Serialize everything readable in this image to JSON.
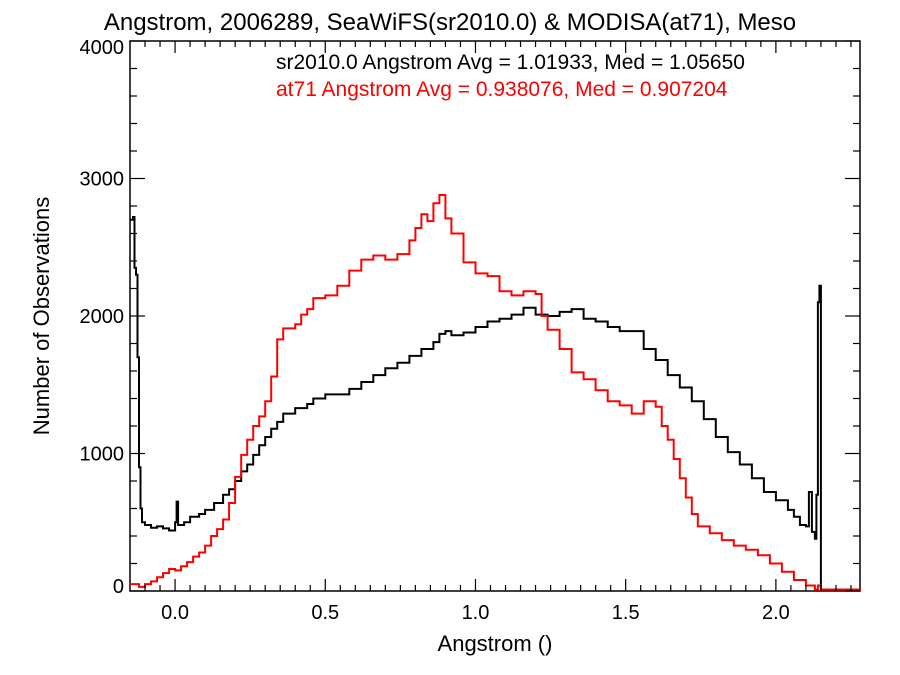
{
  "chart_data": {
    "type": "line",
    "title": "Angstrom, 2006289, SeaWiFS(sr2010.0) & MODISA(at71), Meso",
    "xlabel": "Angstrom ()",
    "ylabel": "Number of Observations",
    "xlim": [
      -0.15,
      2.28
    ],
    "ylim": [
      0,
      4000
    ],
    "x_ticks": [
      0.0,
      0.5,
      1.0,
      1.5,
      2.0
    ],
    "x_tick_labels": [
      "0.0",
      "0.5",
      "1.0",
      "1.5",
      "2.0"
    ],
    "y_ticks": [
      0,
      1000,
      2000,
      3000,
      4000
    ],
    "y_tick_labels": [
      "0",
      "1000",
      "2000",
      "3000",
      "4000"
    ],
    "grid": false,
    "annotations": [
      {
        "text": "sr2010.0 Angstrom Avg = 1.01933, Med = 1.05650",
        "color": "#000000"
      },
      {
        "text": "at71 Angstrom Avg = 0.938076, Med = 0.907204",
        "color": "#ff0000"
      }
    ],
    "series": [
      {
        "color": "#000000",
        "step": true,
        "points": [
          [
            -0.15,
            2700
          ],
          [
            -0.14,
            2720
          ],
          [
            -0.135,
            2350
          ],
          [
            -0.13,
            2300
          ],
          [
            -0.125,
            1700
          ],
          [
            -0.12,
            900
          ],
          [
            -0.115,
            600
          ],
          [
            -0.11,
            500
          ],
          [
            -0.1,
            480
          ],
          [
            -0.08,
            460
          ],
          [
            -0.06,
            470
          ],
          [
            -0.04,
            455
          ],
          [
            -0.02,
            440
          ],
          [
            0.0,
            500
          ],
          [
            0.005,
            650
          ],
          [
            0.01,
            480
          ],
          [
            0.03,
            500
          ],
          [
            0.05,
            540
          ],
          [
            0.08,
            560
          ],
          [
            0.1,
            590
          ],
          [
            0.13,
            640
          ],
          [
            0.16,
            700
          ],
          [
            0.18,
            740
          ],
          [
            0.2,
            800
          ],
          [
            0.22,
            870
          ],
          [
            0.24,
            920
          ],
          [
            0.26,
            990
          ],
          [
            0.28,
            1060
          ],
          [
            0.3,
            1120
          ],
          [
            0.32,
            1180
          ],
          [
            0.34,
            1230
          ],
          [
            0.36,
            1290
          ],
          [
            0.4,
            1330
          ],
          [
            0.44,
            1360
          ],
          [
            0.46,
            1400
          ],
          [
            0.5,
            1430
          ],
          [
            0.55,
            1430
          ],
          [
            0.58,
            1470
          ],
          [
            0.62,
            1520
          ],
          [
            0.66,
            1570
          ],
          [
            0.7,
            1620
          ],
          [
            0.74,
            1660
          ],
          [
            0.78,
            1710
          ],
          [
            0.82,
            1760
          ],
          [
            0.86,
            1810
          ],
          [
            0.88,
            1870
          ],
          [
            0.9,
            1890
          ],
          [
            0.92,
            1860
          ],
          [
            0.96,
            1880
          ],
          [
            1.0,
            1920
          ],
          [
            1.04,
            1960
          ],
          [
            1.08,
            1980
          ],
          [
            1.12,
            2010
          ],
          [
            1.16,
            2060
          ],
          [
            1.2,
            2010
          ],
          [
            1.24,
            2000
          ],
          [
            1.28,
            2030
          ],
          [
            1.32,
            2050
          ],
          [
            1.36,
            1980
          ],
          [
            1.4,
            1960
          ],
          [
            1.44,
            1920
          ],
          [
            1.48,
            1890
          ],
          [
            1.52,
            1890
          ],
          [
            1.56,
            1760
          ],
          [
            1.6,
            1680
          ],
          [
            1.64,
            1570
          ],
          [
            1.68,
            1480
          ],
          [
            1.72,
            1380
          ],
          [
            1.76,
            1250
          ],
          [
            1.8,
            1120
          ],
          [
            1.84,
            1010
          ],
          [
            1.88,
            920
          ],
          [
            1.92,
            820
          ],
          [
            1.96,
            720
          ],
          [
            2.0,
            660
          ],
          [
            2.04,
            590
          ],
          [
            2.06,
            540
          ],
          [
            2.08,
            480
          ],
          [
            2.1,
            470
          ],
          [
            2.11,
            720
          ],
          [
            2.12,
            430
          ],
          [
            2.13,
            380
          ],
          [
            2.135,
            700
          ],
          [
            2.14,
            2100
          ],
          [
            2.145,
            2220
          ],
          [
            2.15,
            10
          ],
          [
            2.28,
            0
          ]
        ]
      },
      {
        "color": "#ff0000",
        "step": true,
        "points": [
          [
            -0.15,
            50
          ],
          [
            -0.12,
            30
          ],
          [
            -0.1,
            50
          ],
          [
            -0.08,
            70
          ],
          [
            -0.06,
            100
          ],
          [
            -0.04,
            130
          ],
          [
            -0.02,
            160
          ],
          [
            0.0,
            150
          ],
          [
            0.02,
            180
          ],
          [
            0.04,
            210
          ],
          [
            0.06,
            250
          ],
          [
            0.08,
            280
          ],
          [
            0.1,
            330
          ],
          [
            0.12,
            400
          ],
          [
            0.14,
            450
          ],
          [
            0.16,
            520
          ],
          [
            0.18,
            640
          ],
          [
            0.2,
            830
          ],
          [
            0.22,
            990
          ],
          [
            0.24,
            1100
          ],
          [
            0.26,
            1200
          ],
          [
            0.28,
            1270
          ],
          [
            0.3,
            1380
          ],
          [
            0.32,
            1560
          ],
          [
            0.34,
            1830
          ],
          [
            0.36,
            1910
          ],
          [
            0.4,
            1940
          ],
          [
            0.42,
            2010
          ],
          [
            0.44,
            2050
          ],
          [
            0.46,
            2130
          ],
          [
            0.5,
            2150
          ],
          [
            0.54,
            2220
          ],
          [
            0.58,
            2330
          ],
          [
            0.62,
            2410
          ],
          [
            0.66,
            2440
          ],
          [
            0.7,
            2410
          ],
          [
            0.74,
            2450
          ],
          [
            0.78,
            2550
          ],
          [
            0.8,
            2640
          ],
          [
            0.82,
            2740
          ],
          [
            0.84,
            2690
          ],
          [
            0.86,
            2820
          ],
          [
            0.88,
            2880
          ],
          [
            0.9,
            2710
          ],
          [
            0.92,
            2600
          ],
          [
            0.96,
            2390
          ],
          [
            1.0,
            2310
          ],
          [
            1.04,
            2290
          ],
          [
            1.08,
            2180
          ],
          [
            1.12,
            2150
          ],
          [
            1.16,
            2180
          ],
          [
            1.2,
            2160
          ],
          [
            1.22,
            2000
          ],
          [
            1.24,
            1900
          ],
          [
            1.28,
            1760
          ],
          [
            1.32,
            1590
          ],
          [
            1.36,
            1540
          ],
          [
            1.4,
            1460
          ],
          [
            1.44,
            1380
          ],
          [
            1.48,
            1350
          ],
          [
            1.52,
            1290
          ],
          [
            1.56,
            1380
          ],
          [
            1.6,
            1340
          ],
          [
            1.62,
            1200
          ],
          [
            1.64,
            1100
          ],
          [
            1.66,
            960
          ],
          [
            1.68,
            820
          ],
          [
            1.7,
            680
          ],
          [
            1.72,
            560
          ],
          [
            1.74,
            470
          ],
          [
            1.78,
            420
          ],
          [
            1.82,
            370
          ],
          [
            1.86,
            330
          ],
          [
            1.9,
            300
          ],
          [
            1.94,
            260
          ],
          [
            1.98,
            200
          ],
          [
            2.02,
            140
          ],
          [
            2.06,
            80
          ],
          [
            2.1,
            40
          ],
          [
            2.13,
            10
          ],
          [
            2.14,
            40
          ],
          [
            2.15,
            10
          ],
          [
            2.28,
            0
          ]
        ]
      }
    ]
  }
}
